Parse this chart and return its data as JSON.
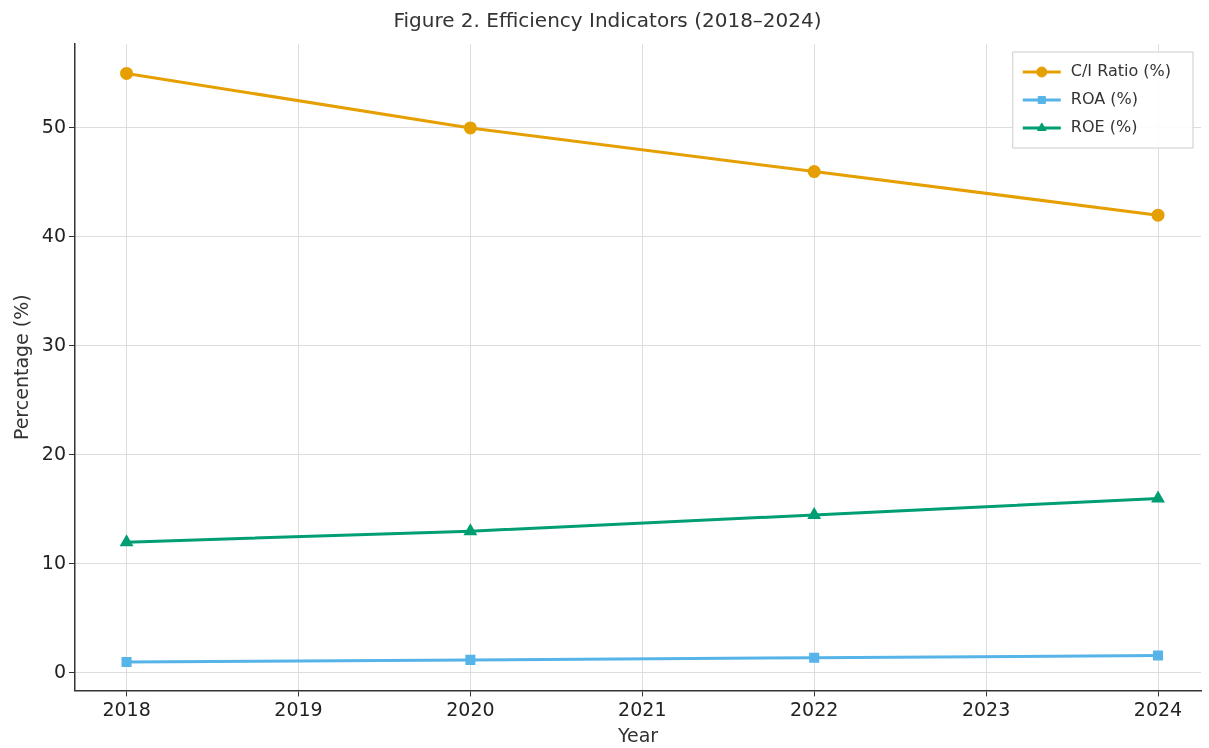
{
  "chart_data": {
    "type": "line",
    "title": "Figure 2. Efficiency Indicators (2018–2024)",
    "xlabel": "Year",
    "ylabel": "Percentage (%)",
    "x": [
      2018,
      2020,
      2022,
      2024
    ],
    "series": [
      {
        "name": "C/I Ratio (%)",
        "color": "#e69f00",
        "values": [
          55,
          50,
          46,
          42
        ],
        "marker": "circle"
      },
      {
        "name": "ROA (%)",
        "color": "#56b4e9",
        "values": [
          1.0,
          1.2,
          1.4,
          1.6
        ],
        "marker": "square"
      },
      {
        "name": "ROE (%)",
        "color": "#009e73",
        "values": [
          12,
          13,
          14.5,
          16
        ],
        "marker": "triangle"
      }
    ],
    "xlim": [
      2017.7,
      2024.25
    ],
    "xticks": [
      2018,
      2019,
      2020,
      2021,
      2022,
      2023,
      2024
    ],
    "ylim": [
      -1.6,
      57.7
    ],
    "yticks": [
      0,
      10,
      20,
      30,
      40,
      50
    ],
    "grid": true,
    "legend": "top right",
    "line_style": "solid"
  }
}
